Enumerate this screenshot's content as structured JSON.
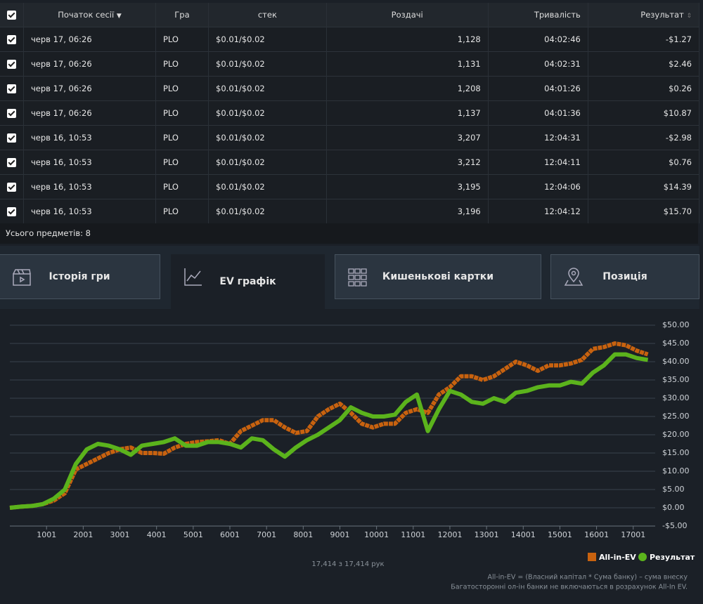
{
  "table": {
    "headers": [
      "Початок сесії",
      "Гра",
      "стек",
      "Роздачі",
      "Тривалість",
      "Результат"
    ],
    "rows": [
      [
        "черв 17, 06:26",
        "PLO",
        "$0.01/$0.02",
        "1,128",
        "04:02:46",
        "-$1.27"
      ],
      [
        "черв 17, 06:26",
        "PLO",
        "$0.01/$0.02",
        "1,131",
        "04:02:31",
        "$2.46"
      ],
      [
        "черв 17, 06:26",
        "PLO",
        "$0.01/$0.02",
        "1,208",
        "04:01:26",
        "$0.26"
      ],
      [
        "черв 17, 06:26",
        "PLO",
        "$0.01/$0.02",
        "1,137",
        "04:01:36",
        "$10.87"
      ],
      [
        "черв 16, 10:53",
        "PLO",
        "$0.01/$0.02",
        "3,207",
        "12:04:31",
        "-$2.98"
      ],
      [
        "черв 16, 10:53",
        "PLO",
        "$0.01/$0.02",
        "3,212",
        "12:04:11",
        "$0.76"
      ],
      [
        "черв 16, 10:53",
        "PLO",
        "$0.01/$0.02",
        "3,195",
        "12:04:06",
        "$14.39"
      ],
      [
        "черв 16, 10:53",
        "PLO",
        "$0.01/$0.02",
        "3,196",
        "12:04:12",
        "$15.70"
      ]
    ],
    "footer": "Усього предметів: 8"
  },
  "tabs": [
    "Історія гри",
    "EV графік",
    "Кишенькові картки",
    "Позиція"
  ],
  "chart_data": {
    "type": "line",
    "x": [
      0,
      300,
      600,
      900,
      1200,
      1500,
      1800,
      2100,
      2400,
      2700,
      3000,
      3300,
      3600,
      3900,
      4200,
      4500,
      4800,
      5100,
      5400,
      5700,
      6000,
      6300,
      6600,
      6900,
      7200,
      7500,
      7800,
      8100,
      8400,
      8700,
      9000,
      9300,
      9600,
      9900,
      10200,
      10500,
      10800,
      11100,
      11400,
      11700,
      12000,
      12300,
      12600,
      12900,
      13200,
      13500,
      13800,
      14100,
      14400,
      14700,
      15000,
      15300,
      15600,
      15900,
      16200,
      16500,
      16800,
      17100,
      17400
    ],
    "series": [
      {
        "name": "All-in-EV",
        "color": "#c8620f",
        "values": [
          0,
          0.3,
          0.5,
          1,
          2,
          4,
          10.5,
          12,
          13.5,
          15,
          16,
          16.5,
          15,
          15,
          14.8,
          16.5,
          17.5,
          18,
          18.2,
          18.5,
          17.5,
          21,
          22.5,
          24,
          24,
          22,
          20.5,
          21,
          25,
          27,
          28.5,
          26,
          23,
          22,
          23,
          23,
          26,
          27,
          26,
          31,
          33,
          36,
          36,
          35,
          36,
          38,
          40,
          39,
          37.5,
          39,
          39,
          39.5,
          40.5,
          43.5,
          44,
          45,
          44.5,
          43,
          42
        ]
      },
      {
        "name": "Результат",
        "color": "#5bb31c",
        "values": [
          0,
          0.3,
          0.5,
          1,
          2.5,
          5,
          12,
          16,
          17.5,
          17,
          16,
          14.5,
          17,
          17.5,
          18,
          19,
          17,
          17,
          18,
          18,
          17.5,
          16.5,
          19,
          18.5,
          16,
          14,
          16.5,
          18.5,
          20,
          22,
          24,
          27.5,
          26,
          25,
          25,
          25.5,
          29,
          31,
          21,
          27,
          32,
          31,
          29,
          28.5,
          30,
          29,
          31.5,
          32,
          33,
          33.5,
          33.5,
          34.5,
          34,
          37,
          39,
          42,
          42,
          41,
          40.5
        ]
      }
    ],
    "xlim": [
      0,
      17600
    ],
    "xticks": [
      1001,
      2001,
      3001,
      4001,
      5001,
      6001,
      7001,
      8001,
      9001,
      10001,
      11001,
      12001,
      13001,
      14001,
      15001,
      16001,
      17001
    ],
    "ylim": [
      -5,
      50
    ],
    "yticks": [
      {
        "value": -5,
        "label": "-$5.00"
      },
      {
        "value": 0,
        "label": "$0.00"
      },
      {
        "value": 5,
        "label": "$5.00"
      },
      {
        "value": 10,
        "label": "$10.00"
      },
      {
        "value": 15,
        "label": "$15.00"
      },
      {
        "value": 20,
        "label": "$20.00"
      },
      {
        "value": 25,
        "label": "$25.00"
      },
      {
        "value": 30,
        "label": "$30.00"
      },
      {
        "value": 35,
        "label": "$35.00"
      },
      {
        "value": 40,
        "label": "$40.00"
      },
      {
        "value": 45,
        "label": "$45.00"
      },
      {
        "value": 50,
        "label": "$50.00"
      }
    ],
    "grid": true,
    "hands_caption": "17,414 з 17,414 рук",
    "notes": [
      "All-in-EV = (Власний капітал * Сума банку) – сума внеску",
      "Багатосторонні ол-ін банки не включаються в розрахунок All-In EV."
    ]
  }
}
